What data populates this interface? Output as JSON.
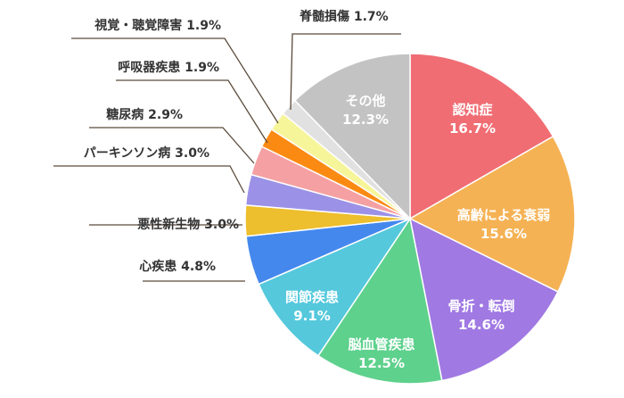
{
  "chart_data": {
    "type": "pie",
    "start_angle_deg": 0,
    "direction": "clockwise",
    "slices": [
      {
        "label": "認知症",
        "value_text": "16.7%",
        "value": 16.7,
        "color": "#f06d73",
        "label_position": "inside"
      },
      {
        "label": "高齢による衰弱",
        "value_text": "15.6%",
        "value": 15.6,
        "color": "#f5b254",
        "label_position": "inside"
      },
      {
        "label": "骨折・転倒",
        "value_text": "14.6%",
        "value": 14.6,
        "color": "#a079e3",
        "label_position": "inside"
      },
      {
        "label": "脳血管疾患",
        "value_text": "12.5%",
        "value": 12.5,
        "color": "#5ed18d",
        "label_position": "inside"
      },
      {
        "label": "関節疾患",
        "value_text": "9.1%",
        "value": 9.1,
        "color": "#55c8dc",
        "label_position": "inside"
      },
      {
        "label": "心疾患",
        "value_text": "4.8%",
        "value": 4.8,
        "color": "#4488ee",
        "label_position": "outside"
      },
      {
        "label": "悪性新生物",
        "value_text": "3.0%",
        "value": 3.0,
        "color": "#edbe2d",
        "label_position": "outside"
      },
      {
        "label": "パーキンソン病",
        "value_text": "3.0%",
        "value": 3.0,
        "color": "#9b91e6",
        "label_position": "outside"
      },
      {
        "label": "糖尿病",
        "value_text": "2.9%",
        "value": 2.9,
        "color": "#f5a0a3",
        "label_position": "outside"
      },
      {
        "label": "呼吸器疾患",
        "value_text": "1.9%",
        "value": 1.9,
        "color": "#fb8a12",
        "label_position": "outside"
      },
      {
        "label": "視覚・聴覚障害",
        "value_text": "1.9%",
        "value": 1.9,
        "color": "#f7f59a",
        "label_position": "outside"
      },
      {
        "label": "脊髄損傷",
        "value_text": "1.7%",
        "value": 1.7,
        "color": "#e1e1e1",
        "label_position": "outside"
      },
      {
        "label": "その他",
        "value_text": "12.3%",
        "value": 12.3,
        "color": "#c3c3c3",
        "label_position": "inside"
      }
    ]
  }
}
